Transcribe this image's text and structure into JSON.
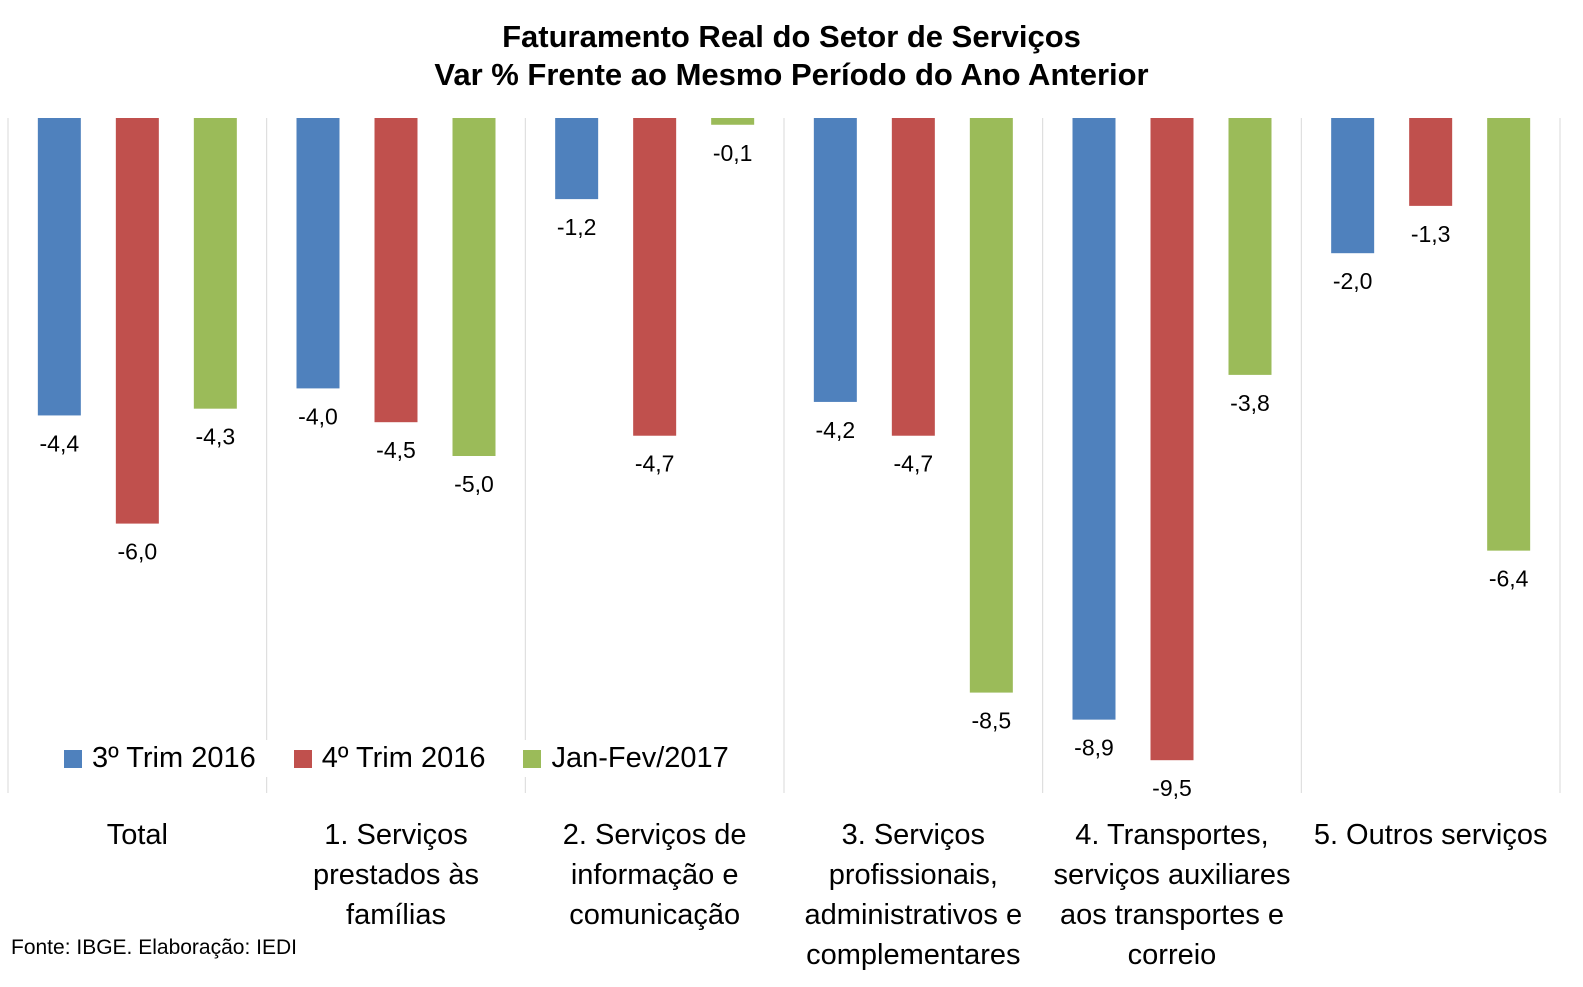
{
  "chart_data": {
    "type": "bar",
    "title": "Faturamento Real do Setor de Serviços",
    "subtitle": "Var % Frente ao Mesmo Período do Ano Anterior",
    "categories": [
      [
        "Total"
      ],
      [
        "1. Serviços",
        "prestados às",
        "famílias"
      ],
      [
        "2. Serviços de",
        "informação e",
        "comunicação"
      ],
      [
        "3. Serviços",
        "profissionais,",
        "administrativos e",
        "complementares"
      ],
      [
        "4. Transportes,",
        "serviços auxiliares",
        "aos transportes e",
        "correio"
      ],
      [
        "5. Outros serviços"
      ]
    ],
    "series": [
      {
        "name": "3º Trim 2016",
        "color": "#4F81BD",
        "values": [
          -4.4,
          -4.0,
          -1.2,
          -4.2,
          -8.9,
          -2.0
        ],
        "labels": [
          "-4,4",
          "-4,0",
          "-1,2",
          "-4,2",
          "-8,9",
          "-2,0"
        ]
      },
      {
        "name": "4º Trim 2016",
        "color": "#C0504D",
        "values": [
          -6.0,
          -4.5,
          -4.7,
          -4.7,
          -9.5,
          -1.3
        ],
        "labels": [
          "-6,0",
          "-4,5",
          "-4,7",
          "-4,7",
          "-9,5",
          "-1,3"
        ]
      },
      {
        "name": "Jan-Fev/2017",
        "color": "#9BBB59",
        "values": [
          -4.3,
          -5.0,
          -0.1,
          -8.5,
          -3.8,
          -6.4
        ],
        "labels": [
          "-4,3",
          "-5,0",
          "-0,1",
          "-8,5",
          "-3,8",
          "-6,4"
        ]
      }
    ],
    "ylim": [
      -10,
      0
    ],
    "legend_position": "bottom-left",
    "grid": "vertical category separators"
  },
  "source_note": "Fonte: IBGE. Elaboração: IEDI"
}
